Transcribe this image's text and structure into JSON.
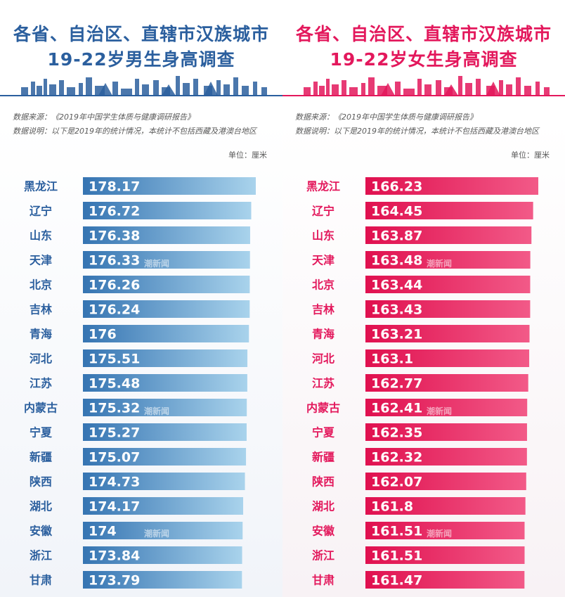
{
  "male": {
    "title_line1": "各省、自治区、直辖市汉族城市",
    "title_line2": "19-22岁男生身高调查",
    "source": "数据来源：《2019年中国学生体质与健康调研报告》",
    "description": "数据说明：以下是2019年的统计情况，本统计不包括西藏及港澳台地区",
    "unit": "单位：厘米",
    "accent_color": "#2b5f9e",
    "bar_color_dark": "#3574b2",
    "bar_color_light": "#a9d3ec"
  },
  "female": {
    "title_line1": "各省、自治区、直辖市汉族城市",
    "title_line2": "19-22岁女生身高调查",
    "source": "数据来源：《2019年中国学生体质与健康调研报告》",
    "description": "数据说明：以下是2019年的统计情况，本统计不包括西藏及港澳台地区",
    "unit": "单位：厘米",
    "accent_color": "#e3185c",
    "bar_color_dark": "#e0104f",
    "bar_color_light": "#f25a88"
  },
  "watermark_text": "潮新闻",
  "chart_data": [
    {
      "type": "bar",
      "orientation": "horizontal",
      "title": "19-22岁男生身高调查",
      "categories": [
        "黑龙江",
        "辽宁",
        "山东",
        "天津",
        "北京",
        "吉林",
        "青海",
        "河北",
        "江苏",
        "内蒙古",
        "宁夏",
        "新疆",
        "陕西",
        "湖北",
        "安徽",
        "浙江",
        "甘肃"
      ],
      "values": [
        178.17,
        176.72,
        176.38,
        176.33,
        176.26,
        176.24,
        176,
        175.51,
        175.48,
        175.32,
        175.27,
        175.07,
        174.73,
        174.17,
        174,
        173.84,
        173.79
      ],
      "unit": "厘米"
    },
    {
      "type": "bar",
      "orientation": "horizontal",
      "title": "19-22岁女生身高调查",
      "categories": [
        "黑龙江",
        "辽宁",
        "山东",
        "天津",
        "北京",
        "吉林",
        "青海",
        "河北",
        "江苏",
        "内蒙古",
        "宁夏",
        "新疆",
        "陕西",
        "湖北",
        "安徽",
        "浙江",
        "甘肃"
      ],
      "values": [
        166.23,
        164.45,
        163.87,
        163.48,
        163.44,
        163.43,
        163.21,
        163.1,
        162.77,
        162.41,
        162.35,
        162.32,
        162.07,
        161.8,
        161.51,
        161.51,
        161.47
      ],
      "unit": "厘米"
    }
  ]
}
